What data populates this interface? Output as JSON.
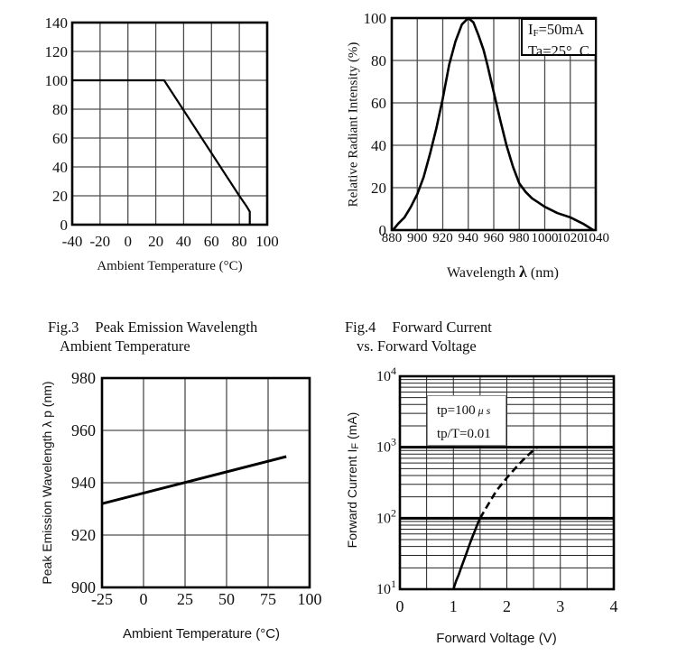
{
  "page": {
    "background": "#ffffff",
    "ink": "#111111",
    "grid_color": "#4d4d4d"
  },
  "chart_data": [
    {
      "id": "fig1",
      "type": "line",
      "title": "",
      "xlabel": "Ambient Temperature (°C)",
      "ylabel": "",
      "xlim": [
        -40,
        100
      ],
      "ylim": [
        0,
        140
      ],
      "xticks": [
        -40,
        -20,
        0,
        20,
        40,
        60,
        80,
        100
      ],
      "yticks": [
        0,
        20,
        40,
        60,
        80,
        100,
        120,
        140
      ],
      "grid": true,
      "series": [
        {
          "name": "allowable-forward-current-derating",
          "style": "solid",
          "width": 2.2,
          "points": [
            [
              -40,
              100
            ],
            [
              26,
              100
            ],
            [
              80,
              20
            ],
            [
              85,
              13
            ],
            [
              87.5,
              9
            ],
            [
              87.5,
              0
            ]
          ]
        }
      ]
    },
    {
      "id": "fig2",
      "type": "line",
      "title": "",
      "xlabel_pre": "Wavelength",
      "xlabel_sym": "λ",
      "xlabel_post": "(nm)",
      "ylabel": "Relative Radiant Intensity (%)",
      "xlim": [
        880,
        1040
      ],
      "ylim": [
        0,
        100
      ],
      "xticks": [
        880,
        900,
        920,
        940,
        960,
        980,
        1000,
        1020,
        1040
      ],
      "yticks": [
        0,
        20,
        40,
        60,
        80,
        100
      ],
      "grid": true,
      "legend": {
        "line1_pre": "I",
        "line1_sub": "F",
        "line1_post": "=50mA",
        "line2": "Ta=25°  C"
      },
      "series": [
        {
          "name": "relative-spectral-distribution",
          "style": "solid",
          "width": 2.6,
          "points": [
            [
              881,
              0
            ],
            [
              885,
              3
            ],
            [
              890,
              6
            ],
            [
              895,
              11
            ],
            [
              900,
              17
            ],
            [
              905,
              25
            ],
            [
              910,
              36
            ],
            [
              915,
              48
            ],
            [
              920,
              62
            ],
            [
              925,
              78
            ],
            [
              930,
              89
            ],
            [
              935,
              97
            ],
            [
              940,
              100
            ],
            [
              944,
              98
            ],
            [
              948,
              92
            ],
            [
              952,
              85
            ],
            [
              955,
              78
            ],
            [
              960,
              65
            ],
            [
              965,
              52
            ],
            [
              970,
              40
            ],
            [
              975,
              30
            ],
            [
              980,
              22
            ],
            [
              985,
              18
            ],
            [
              990,
              15
            ],
            [
              995,
              13
            ],
            [
              1000,
              11
            ],
            [
              1010,
              8
            ],
            [
              1020,
              6
            ],
            [
              1030,
              3
            ],
            [
              1038,
              0
            ]
          ]
        }
      ]
    },
    {
      "id": "fig3",
      "type": "line",
      "caption": {
        "label": "Fig.3",
        "line1": "Peak Emission Wavelength",
        "line2": "Ambient Temperature"
      },
      "xlabel": "Ambient Temperature (°C)",
      "ylabel": "Peak Emission Wavelength λ p (nm)",
      "xlim": [
        -25,
        100
      ],
      "ylim": [
        900,
        980
      ],
      "xticks": [
        -25,
        0,
        25,
        50,
        75,
        100
      ],
      "yticks": [
        900,
        920,
        940,
        960,
        980
      ],
      "grid": true,
      "series": [
        {
          "name": "peak-wavelength-vs-temperature",
          "style": "solid",
          "width": 3,
          "points": [
            [
              -25,
              932
            ],
            [
              86,
              950
            ]
          ]
        }
      ]
    },
    {
      "id": "fig4",
      "type": "line",
      "yscale": "log",
      "caption": {
        "label": "Fig.4",
        "line1": "Forward Current",
        "line2": "vs. Forward Voltage"
      },
      "xlabel": "Forward Voltage (V)",
      "ylabel_pre": "Forward Current I",
      "ylabel_sub": "F",
      "ylabel_post": " (mA)",
      "xlim": [
        0,
        4
      ],
      "ylim": [
        10,
        10000
      ],
      "xticks": [
        0,
        1,
        2,
        3,
        4
      ],
      "yticks": [
        10,
        100,
        1000,
        10000
      ],
      "x_minor_step": 0.5,
      "grid": true,
      "annotation": {
        "line1": "tp=100",
        "line1_unit": "μ s",
        "line2": "tp/T=0.01"
      },
      "series": [
        {
          "name": "forward-current-vs-voltage-solid",
          "style": "solid",
          "width": 2.6,
          "points": [
            [
              1.0,
              10
            ],
            [
              1.05,
              13
            ],
            [
              1.1,
              16
            ],
            [
              1.15,
              20.5
            ],
            [
              1.2,
              26
            ],
            [
              1.25,
              33
            ],
            [
              1.3,
              42
            ],
            [
              1.35,
              53
            ],
            [
              1.4,
              66
            ],
            [
              1.45,
              82
            ],
            [
              1.5,
              100
            ]
          ]
        },
        {
          "name": "forward-current-vs-voltage-dashed",
          "style": "dashed",
          "width": 2.6,
          "points": [
            [
              1.5,
              100
            ],
            [
              1.6,
              135
            ],
            [
              1.7,
              180
            ],
            [
              1.8,
              240
            ],
            [
              1.9,
              300
            ],
            [
              2.0,
              370
            ],
            [
              2.1,
              450
            ],
            [
              2.2,
              550
            ],
            [
              2.3,
              660
            ],
            [
              2.4,
              780
            ],
            [
              2.5,
              910
            ],
            [
              2.57,
              1000
            ]
          ]
        }
      ]
    }
  ]
}
